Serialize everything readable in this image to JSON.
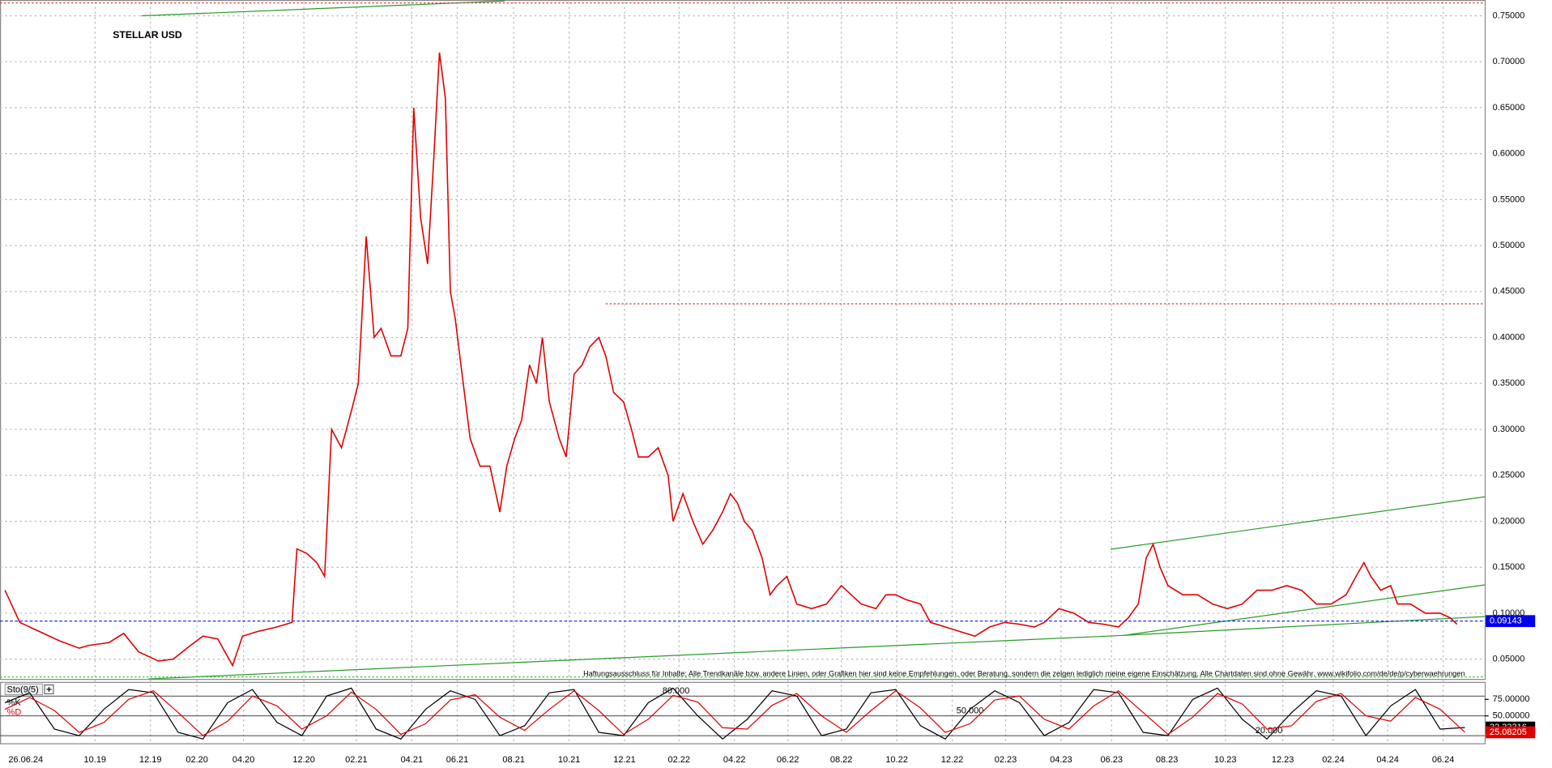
{
  "chart_data": [
    {
      "type": "line",
      "title": "STELLAR USD",
      "date": "26.06.24",
      "color": "#e00000",
      "disclaimer": "Haftungsausschluss für Inhalte: Alle Trendkanäle bzw. andere Linien, oder Grafiken hier sind keine Empfehlungen, oder Beratung, sondern die zeigen lediglich meine eigene Einschätzung. Alle Chartdaten sind ohne Gewähr.  www.wikifolio.com/de/de/p/cyberwaehrungen",
      "x": [
        5,
        20,
        40,
        60,
        80,
        90,
        110,
        125,
        140,
        160,
        175,
        190,
        205,
        220,
        235,
        245,
        260,
        280,
        295,
        300,
        310,
        320,
        328,
        335,
        345,
        355,
        362,
        370,
        378,
        385,
        395,
        405,
        412,
        418,
        425,
        432,
        438,
        444,
        450,
        455,
        460,
        468,
        475,
        485,
        495,
        505,
        512,
        520,
        527,
        535,
        542,
        548,
        555,
        565,
        572,
        580,
        588,
        596,
        605,
        612,
        620,
        630,
        638,
        645,
        655,
        665,
        675,
        680,
        690,
        700,
        710,
        720,
        730,
        738,
        745,
        752,
        760,
        770,
        778,
        785,
        795,
        805,
        820,
        835,
        850,
        860,
        870,
        885,
        895,
        905,
        915,
        930,
        940,
        955,
        970,
        985,
        1000,
        1015,
        1030,
        1045,
        1055,
        1070,
        1085,
        1100,
        1115,
        1130,
        1140,
        1150,
        1158,
        1165,
        1172,
        1180,
        1195,
        1210,
        1225,
        1240,
        1255,
        1270,
        1285,
        1300,
        1315,
        1330,
        1345,
        1360,
        1370,
        1378,
        1385,
        1395,
        1405,
        1412,
        1425,
        1440,
        1455,
        1465,
        1472
      ],
      "values": [
        0.125,
        0.09,
        0.08,
        0.07,
        0.062,
        0.065,
        0.068,
        0.078,
        0.058,
        0.048,
        0.05,
        0.063,
        0.075,
        0.072,
        0.043,
        0.075,
        0.08,
        0.085,
        0.09,
        0.17,
        0.165,
        0.155,
        0.14,
        0.3,
        0.28,
        0.32,
        0.35,
        0.51,
        0.4,
        0.41,
        0.38,
        0.38,
        0.41,
        0.65,
        0.53,
        0.48,
        0.59,
        0.71,
        0.66,
        0.45,
        0.42,
        0.35,
        0.29,
        0.26,
        0.26,
        0.21,
        0.26,
        0.29,
        0.31,
        0.37,
        0.35,
        0.4,
        0.33,
        0.29,
        0.27,
        0.36,
        0.37,
        0.39,
        0.4,
        0.38,
        0.34,
        0.33,
        0.3,
        0.27,
        0.27,
        0.28,
        0.25,
        0.2,
        0.23,
        0.2,
        0.175,
        0.19,
        0.21,
        0.23,
        0.22,
        0.2,
        0.19,
        0.16,
        0.12,
        0.13,
        0.14,
        0.11,
        0.105,
        0.11,
        0.13,
        0.12,
        0.11,
        0.105,
        0.12,
        0.12,
        0.115,
        0.11,
        0.09,
        0.085,
        0.08,
        0.075,
        0.085,
        0.09,
        0.088,
        0.085,
        0.09,
        0.105,
        0.1,
        0.09,
        0.088,
        0.085,
        0.095,
        0.11,
        0.16,
        0.175,
        0.15,
        0.13,
        0.12,
        0.12,
        0.11,
        0.105,
        0.11,
        0.125,
        0.125,
        0.13,
        0.125,
        0.11,
        0.11,
        0.12,
        0.14,
        0.155,
        0.14,
        0.125,
        0.13,
        0.11,
        0.11,
        0.1,
        0.1,
        0.095,
        0.088
      ],
      "last_value": {
        "value": 0.09143,
        "label": "0.09143"
      },
      "xlim": [
        0,
        1500
      ],
      "xticks": [
        {
          "value": 96,
          "label": "10.19"
        },
        {
          "value": 152,
          "label": "12.19"
        },
        {
          "value": 199,
          "label": "02.20"
        },
        {
          "value": 246,
          "label": "04.20"
        },
        {
          "value": 307,
          "label": "12.20"
        },
        {
          "value": 360,
          "label": "02.21"
        },
        {
          "value": 416,
          "label": "04.21"
        },
        {
          "value": 462,
          "label": "06.21"
        },
        {
          "value": 519,
          "label": "08.21"
        },
        {
          "value": 575,
          "label": "10.21"
        },
        {
          "value": 631,
          "label": "12.21"
        },
        {
          "value": 686,
          "label": "02.22"
        },
        {
          "value": 742,
          "label": "04.22"
        },
        {
          "value": 796,
          "label": "06.22"
        },
        {
          "value": 850,
          "label": "08.22"
        },
        {
          "value": 906,
          "label": "10.22"
        },
        {
          "value": 962,
          "label": "12.22"
        },
        {
          "value": 1016,
          "label": "02.23"
        },
        {
          "value": 1072,
          "label": "04.23"
        },
        {
          "value": 1123,
          "label": "06.23"
        },
        {
          "value": 1179,
          "label": "08.23"
        },
        {
          "value": 1238,
          "label": "10.23"
        },
        {
          "value": 1296,
          "label": "12.23"
        },
        {
          "value": 1347,
          "label": "02.24"
        },
        {
          "value": 1402,
          "label": "04.24"
        },
        {
          "value": 1458,
          "label": "06.24"
        }
      ],
      "ylim": [
        0.0285,
        0.765
      ],
      "yticks": [
        {
          "value": 0.05,
          "label": "0.05000"
        },
        {
          "value": 0.1,
          "label": "0.10000"
        },
        {
          "value": 0.15,
          "label": "0.15000"
        },
        {
          "value": 0.2,
          "label": "0.20000"
        },
        {
          "value": 0.25,
          "label": "0.25000"
        },
        {
          "value": 0.3,
          "label": "0.30000"
        },
        {
          "value": 0.35,
          "label": "0.35000"
        },
        {
          "value": 0.4,
          "label": "0.40000"
        },
        {
          "value": 0.45,
          "label": "0.45000"
        },
        {
          "value": 0.5,
          "label": "0.50000"
        },
        {
          "value": 0.55,
          "label": "0.55000"
        },
        {
          "value": 0.6,
          "label": "0.60000"
        },
        {
          "value": 0.65,
          "label": "0.65000"
        },
        {
          "value": 0.7,
          "label": "0.70000"
        },
        {
          "value": 0.75,
          "label": "0.75000"
        }
      ],
      "grid": true
    },
    {
      "type": "line",
      "title": "Sto(9/5)",
      "x": [
        5,
        30,
        55,
        80,
        105,
        130,
        155,
        180,
        205,
        230,
        255,
        280,
        305,
        330,
        355,
        380,
        405,
        430,
        455,
        480,
        505,
        530,
        555,
        580,
        605,
        630,
        655,
        680,
        705,
        730,
        755,
        780,
        805,
        830,
        855,
        880,
        905,
        930,
        955,
        980,
        1005,
        1030,
        1055,
        1080,
        1105,
        1130,
        1155,
        1180,
        1205,
        1230,
        1255,
        1280,
        1305,
        1330,
        1355,
        1380,
        1405,
        1430,
        1455,
        1480
      ],
      "series": [
        {
          "name": "%K",
          "color": "#000000",
          "values": [
            70,
            85,
            30,
            20,
            60,
            90,
            85,
            25,
            15,
            70,
            90,
            40,
            20,
            80,
            92,
            30,
            15,
            60,
            88,
            75,
            20,
            35,
            85,
            90,
            25,
            20,
            70,
            92,
            50,
            15,
            45,
            88,
            80,
            20,
            30,
            85,
            90,
            35,
            15,
            60,
            88,
            70,
            20,
            40,
            90,
            85,
            25,
            20,
            75,
            92,
            45,
            15,
            55,
            88,
            80,
            20,
            65,
            90,
            30,
            32.33316
          ]
        },
        {
          "name": "%D",
          "color": "#e00000",
          "values": [
            60,
            78,
            58,
            25,
            40,
            75,
            88,
            55,
            20,
            42,
            80,
            65,
            30,
            50,
            86,
            60,
            22,
            38,
            74,
            82,
            48,
            28,
            60,
            88,
            58,
            22,
            45,
            81,
            71,
            32,
            30,
            66,
            84,
            50,
            25,
            58,
            88,
            62,
            25,
            38,
            74,
            80,
            45,
            30,
            65,
            88,
            55,
            22,
            48,
            84,
            68,
            30,
            35,
            72,
            84,
            50,
            42,
            78,
            60,
            25.08205
          ]
        }
      ],
      "levels": [
        {
          "value": 80,
          "label": "80.000"
        },
        {
          "value": 50,
          "label": "50.000"
        },
        {
          "value": 20,
          "label": "20.000"
        }
      ],
      "xlim": [
        0,
        1500
      ],
      "ylim": [
        10,
        100
      ],
      "yticks": [
        {
          "value": 75,
          "label": "75.00000"
        },
        {
          "value": 50,
          "label": "50.00000"
        }
      ]
    }
  ]
}
